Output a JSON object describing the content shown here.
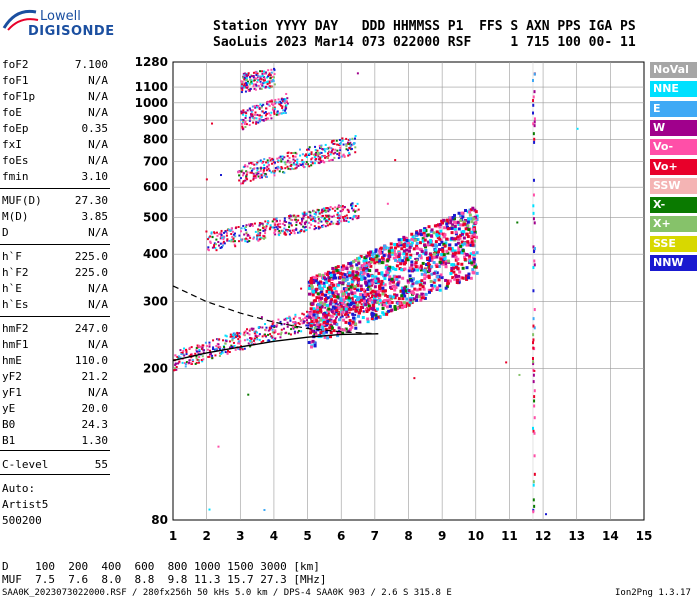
{
  "logo": {
    "line1": "Lowell",
    "line2": "DIGISONDE"
  },
  "header": {
    "line1": "Station YYYY DAY   DDD HHMMSS P1  FFS S AXN PPS IGA PS",
    "line2": "SaoLuis 2023 Mar14 073 022000 RSF     1 715 100 00- 11"
  },
  "params": [
    {
      "name": "foF2",
      "value": "7.100"
    },
    {
      "name": "foF1",
      "value": "N/A"
    },
    {
      "name": "foF1p",
      "value": "N/A"
    },
    {
      "name": "foE",
      "value": "N/A"
    },
    {
      "name": "foEp",
      "value": "0.35"
    },
    {
      "name": "fxI",
      "value": "N/A"
    },
    {
      "name": "foEs",
      "value": "N/A"
    },
    {
      "name": "fmin",
      "value": "3.10"
    },
    {
      "name": "MUF(D)",
      "value": "27.30"
    },
    {
      "name": "M(D)",
      "value": "3.85"
    },
    {
      "name": "D",
      "value": "N/A"
    },
    {
      "name": "h`F",
      "value": "225.0"
    },
    {
      "name": "h`F2",
      "value": "225.0"
    },
    {
      "name": "h`E",
      "value": "N/A"
    },
    {
      "name": "h`Es",
      "value": "N/A"
    },
    {
      "name": "hmF2",
      "value": "247.0"
    },
    {
      "name": "hmF1",
      "value": "N/A"
    },
    {
      "name": "hmE",
      "value": "110.0"
    },
    {
      "name": "yF2",
      "value": "21.2"
    },
    {
      "name": "yF1",
      "value": "N/A"
    },
    {
      "name": "yE",
      "value": "20.0"
    },
    {
      "name": "B0",
      "value": "24.3"
    },
    {
      "name": "B1",
      "value": "1.30"
    },
    {
      "name": "C-level",
      "value": "55"
    }
  ],
  "autoscaling": {
    "line1": "Auto:",
    "line2": "Artist5",
    "line3": "500200"
  },
  "footer": {
    "d_row": "D    100  200  400  600  800 1000 1500 3000 [km]",
    "muf_row": "MUF  7.5  7.6  8.0  8.8  9.8 11.3 15.7 27.3 [MHz]",
    "file_row": "SAA0K_2023073022000.RSF / 280fx256h 50 kHs 5.0 km / DPS-4 SAA0K 903 / 2.6 S 315.8 E",
    "version": "Ion2Png 1.3.17"
  },
  "legend": [
    {
      "label": "NoVal",
      "color": "#a6a6a6"
    },
    {
      "label": "NNE",
      "color": "#00e0ff"
    },
    {
      "label": "E",
      "color": "#3fa9f5"
    },
    {
      "label": "W",
      "color": "#a0008c"
    },
    {
      "label": "Vo-",
      "color": "#ff4fa8"
    },
    {
      "label": "Vo+",
      "color": "#e8002a"
    },
    {
      "label": "SSW",
      "color": "#f4b4b4"
    },
    {
      "label": "X-",
      "color": "#0a7a00"
    },
    {
      "label": "X+",
      "color": "#86c26a"
    },
    {
      "label": "SSE",
      "color": "#d8d800"
    },
    {
      "label": "NNW",
      "color": "#1a1ad0"
    }
  ],
  "chart_data": {
    "type": "scatter",
    "xlabel": "",
    "ylabel": "",
    "xlim": [
      1,
      15
    ],
    "ylim": [
      80,
      1280
    ],
    "x_ticks": [
      1,
      2,
      3,
      4,
      5,
      6,
      7,
      8,
      9,
      10,
      11,
      12,
      13,
      14,
      15
    ],
    "y_ticks": [
      80,
      200,
      300,
      400,
      500,
      600,
      700,
      800,
      900,
      1000,
      1100,
      1280
    ],
    "grid": true,
    "y_scale": "log",
    "traces": [
      {
        "name": "F2 1st hop",
        "x0": 1.0,
        "x1": 7.1,
        "h0": 205,
        "h1": 300
      },
      {
        "name": "F2 2nd hop",
        "x0": 2.0,
        "x1": 6.5,
        "h0": 420,
        "h1": 510
      },
      {
        "name": "F2 3rd hop",
        "x0": 2.9,
        "x1": 6.4,
        "h0": 630,
        "h1": 760
      },
      {
        "name": "F2 4th hop",
        "x0": 3.0,
        "x1": 4.4,
        "h0": 880,
        "h1": 980
      },
      {
        "name": "F2 5th hop",
        "x0": 3.0,
        "x1": 4.0,
        "h0": 1100,
        "h1": 1140
      },
      {
        "name": "spread F",
        "x0": 5.0,
        "x1": 10.0,
        "h0": 270,
        "h1": 420
      }
    ],
    "fitted_profile": {
      "x": [
        1,
        2,
        3,
        4,
        5,
        6,
        7.1
      ],
      "y": [
        210,
        220,
        228,
        236,
        242,
        246,
        247
      ]
    },
    "dashed_profile": {
      "x": [
        1,
        2,
        3,
        4,
        5,
        6,
        7.1
      ],
      "y": [
        330,
        300,
        280,
        265,
        255,
        250,
        247
      ]
    }
  }
}
